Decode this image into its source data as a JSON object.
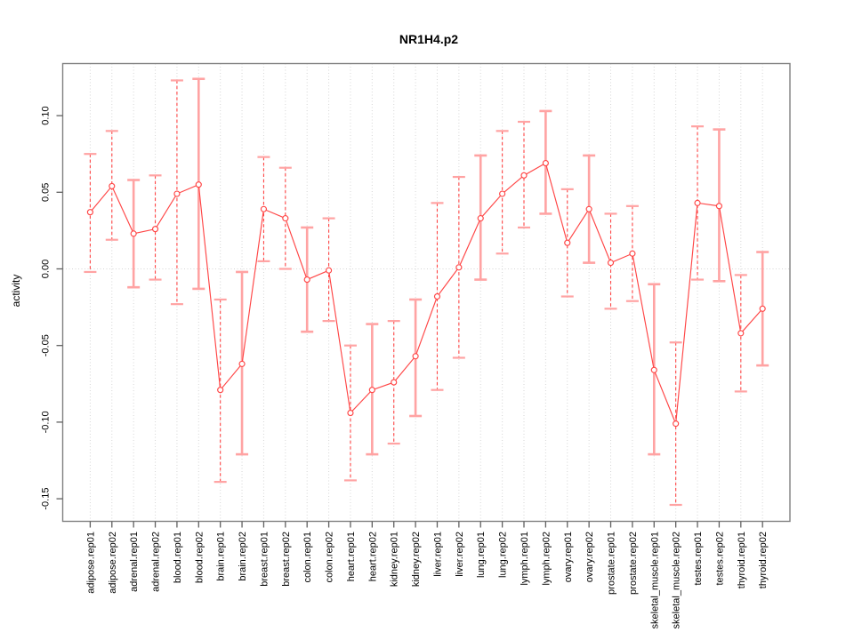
{
  "chart_data": {
    "type": "line",
    "title": "NR1H4.p2",
    "xlabel": "",
    "ylabel": "activity",
    "legend": "none",
    "grid": "vertical dotted gridline at every category; dotted horizontal line at y=0",
    "ylim": [
      -0.165,
      0.134
    ],
    "yticks": [
      0.1,
      0.05,
      0.0,
      -0.05,
      -0.1,
      -0.15
    ],
    "categories": [
      "adipose.rep01",
      "adipose.rep02",
      "adrenal.rep01",
      "adrenal.rep02",
      "blood.rep01",
      "blood.rep02",
      "brain.rep01",
      "brain.rep02",
      "breast.rep01",
      "breast.rep02",
      "colon.rep01",
      "colon.rep02",
      "heart.rep01",
      "heart.rep02",
      "kidney.rep01",
      "kidney.rep02",
      "liver.rep01",
      "liver.rep02",
      "lung.rep01",
      "lung.rep02",
      "lymph.rep01",
      "lymph.rep02",
      "ovary.rep01",
      "ovary.rep02",
      "prostate.rep01",
      "prostate.rep02",
      "skeletal_muscle.rep01",
      "skeletal_muscle.rep02",
      "testes.rep01",
      "testes.rep02",
      "thyroid.rep01",
      "thyroid.rep02"
    ],
    "series": [
      {
        "name": "activity",
        "marker": "open-circle",
        "values": [
          0.037,
          0.054,
          0.023,
          0.026,
          0.049,
          0.055,
          -0.079,
          -0.062,
          0.039,
          0.033,
          -0.007,
          -0.001,
          -0.094,
          -0.079,
          -0.074,
          -0.057,
          -0.018,
          0.001,
          0.033,
          0.049,
          0.061,
          0.069,
          0.017,
          0.039,
          0.004,
          0.01,
          -0.066,
          -0.101,
          0.043,
          0.041,
          -0.042,
          -0.026
        ],
        "ci_high": [
          0.075,
          0.09,
          0.058,
          0.061,
          0.123,
          0.124,
          -0.02,
          -0.002,
          0.073,
          0.066,
          0.027,
          0.033,
          -0.05,
          -0.036,
          -0.034,
          -0.02,
          0.043,
          0.06,
          0.074,
          0.09,
          0.096,
          0.103,
          0.052,
          0.074,
          0.036,
          0.041,
          -0.01,
          -0.048,
          0.093,
          0.091,
          -0.004,
          0.011
        ],
        "ci_low": [
          -0.002,
          0.019,
          -0.012,
          -0.007,
          -0.023,
          -0.013,
          -0.139,
          -0.121,
          0.005,
          0.0,
          -0.041,
          -0.034,
          -0.138,
          -0.121,
          -0.114,
          -0.096,
          -0.079,
          -0.058,
          -0.007,
          0.01,
          0.027,
          0.036,
          -0.018,
          0.004,
          -0.026,
          -0.021,
          -0.121,
          -0.154,
          -0.007,
          -0.008,
          -0.08,
          -0.063
        ],
        "bar_styles": [
          "dashed",
          "dashed",
          "solid",
          "dashed",
          "dashed",
          "solid",
          "dashed",
          "solid",
          "dashed",
          "dashed",
          "solid",
          "dashed",
          "dashed",
          "solid",
          "dashed",
          "solid",
          "dashed",
          "dashed",
          "solid",
          "dashed",
          "dashed",
          "solid",
          "dashed",
          "solid",
          "dashed",
          "dashed",
          "solid",
          "dashed",
          "dashed",
          "solid",
          "dashed",
          "solid"
        ]
      }
    ],
    "colors": {
      "line": "#ff4545",
      "point_stroke": "#ff4545",
      "point_fill": "#ffffff",
      "bar_dashed": "#ff4545",
      "bar_solid": "#ffa3a3",
      "cap": "#ffa3a3",
      "grid": "#d6d6d6",
      "frame": "#808080",
      "tick": "#606060",
      "text": "#000000"
    }
  }
}
